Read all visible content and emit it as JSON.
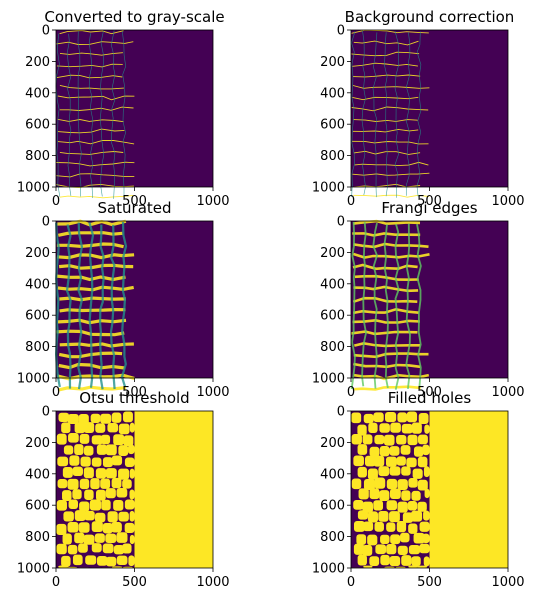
{
  "chart_data": [
    {
      "type": "heatmap",
      "title": "Converted to gray-scale",
      "xlim": [
        0,
        1000
      ],
      "ylim": [
        1000,
        0
      ],
      "xticks": [
        0,
        500,
        1000
      ],
      "yticks": [
        0,
        200,
        400,
        600,
        800,
        1000
      ],
      "colormap": "viridis",
      "content_right_edge": 500,
      "background": "low",
      "features": "thin cell-wall network"
    },
    {
      "type": "heatmap",
      "title": "Background correction",
      "xlim": [
        0,
        1000
      ],
      "ylim": [
        1000,
        0
      ],
      "xticks": [
        0,
        500,
        1000
      ],
      "yticks": [
        0,
        200,
        400,
        600,
        800,
        1000
      ],
      "colormap": "viridis",
      "content_right_edge": 500,
      "background": "low",
      "features": "thin cell-wall network"
    },
    {
      "type": "heatmap",
      "title": "Saturated",
      "xlim": [
        0,
        1000
      ],
      "ylim": [
        1000,
        0
      ],
      "xticks": [
        0,
        500,
        1000
      ],
      "yticks": [
        0,
        200,
        400,
        600,
        800,
        1000
      ],
      "colormap": "viridis",
      "content_right_edge": 500,
      "background": "low",
      "features": "thick saturated cell walls"
    },
    {
      "type": "heatmap",
      "title": "Frangi edges",
      "xlim": [
        0,
        1000
      ],
      "ylim": [
        1000,
        0
      ],
      "xticks": [
        0,
        500,
        1000
      ],
      "yticks": [
        0,
        200,
        400,
        600,
        800,
        1000
      ],
      "colormap": "viridis",
      "content_right_edge": 500,
      "background": "low",
      "features": "edge-filtered cell walls"
    },
    {
      "type": "heatmap",
      "title": "Otsu threshold",
      "xlim": [
        0,
        1000
      ],
      "ylim": [
        1000,
        0
      ],
      "xticks": [
        0,
        500,
        1000
      ],
      "yticks": [
        0,
        200,
        400,
        600,
        800,
        1000
      ],
      "colormap": "viridis",
      "content_right_edge": 500,
      "background": "high",
      "features": "binary cell mask"
    },
    {
      "type": "heatmap",
      "title": "Filled holes",
      "xlim": [
        0,
        1000
      ],
      "ylim": [
        1000,
        0
      ],
      "xticks": [
        0,
        500,
        1000
      ],
      "yticks": [
        0,
        200,
        400,
        600,
        800,
        1000
      ],
      "colormap": "viridis",
      "content_right_edge": 500,
      "background": "high",
      "features": "binary cell mask, holes filled"
    }
  ],
  "colors": {
    "low": "#440154",
    "high": "#fde725",
    "mid": "#21918c",
    "green": "#5ec962",
    "blue": "#3b528b"
  }
}
